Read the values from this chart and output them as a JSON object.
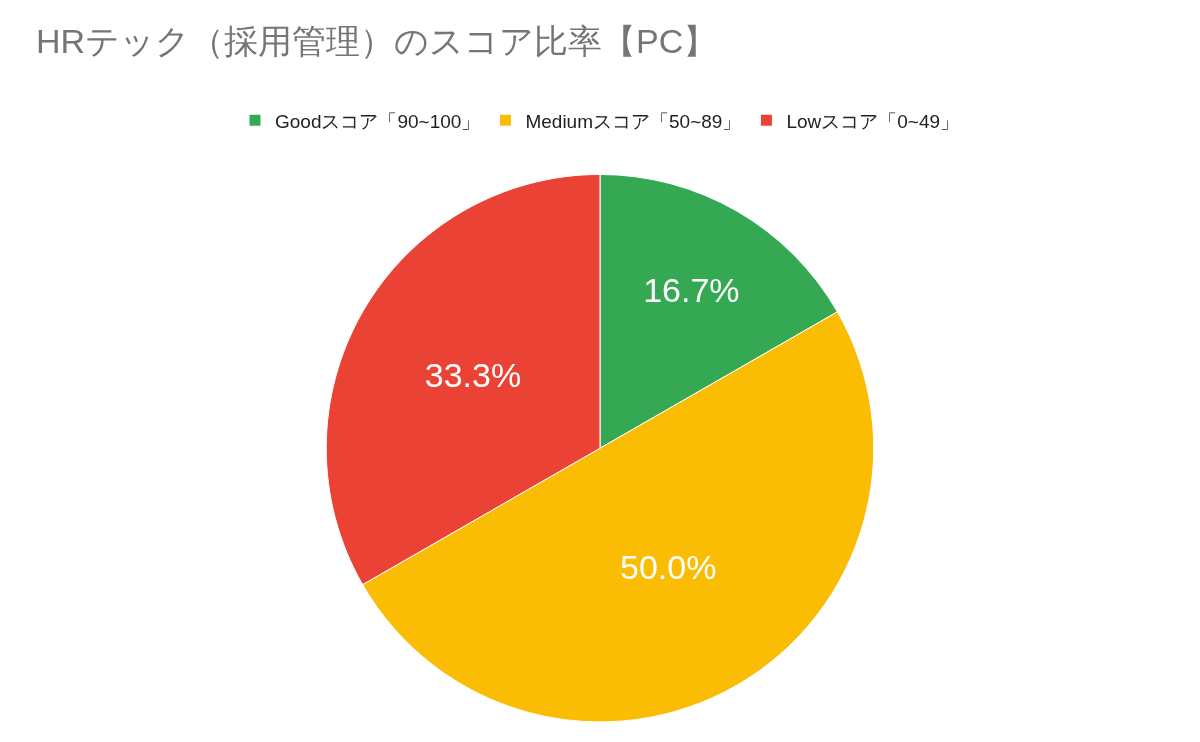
{
  "chart_data": {
    "type": "pie",
    "title": "HRテック（採用管理）のスコア比率【PC】",
    "categories": [
      "Goodスコア「90~100」",
      "Mediumスコア「50~89」",
      "Lowスコア「0~49」"
    ],
    "values": [
      16.7,
      50.0,
      33.3
    ],
    "colors": [
      "#34a853",
      "#fbbc04",
      "#ea4335"
    ],
    "value_labels": [
      "16.7%",
      "50.0%",
      "33.3%"
    ],
    "legend": "top"
  }
}
